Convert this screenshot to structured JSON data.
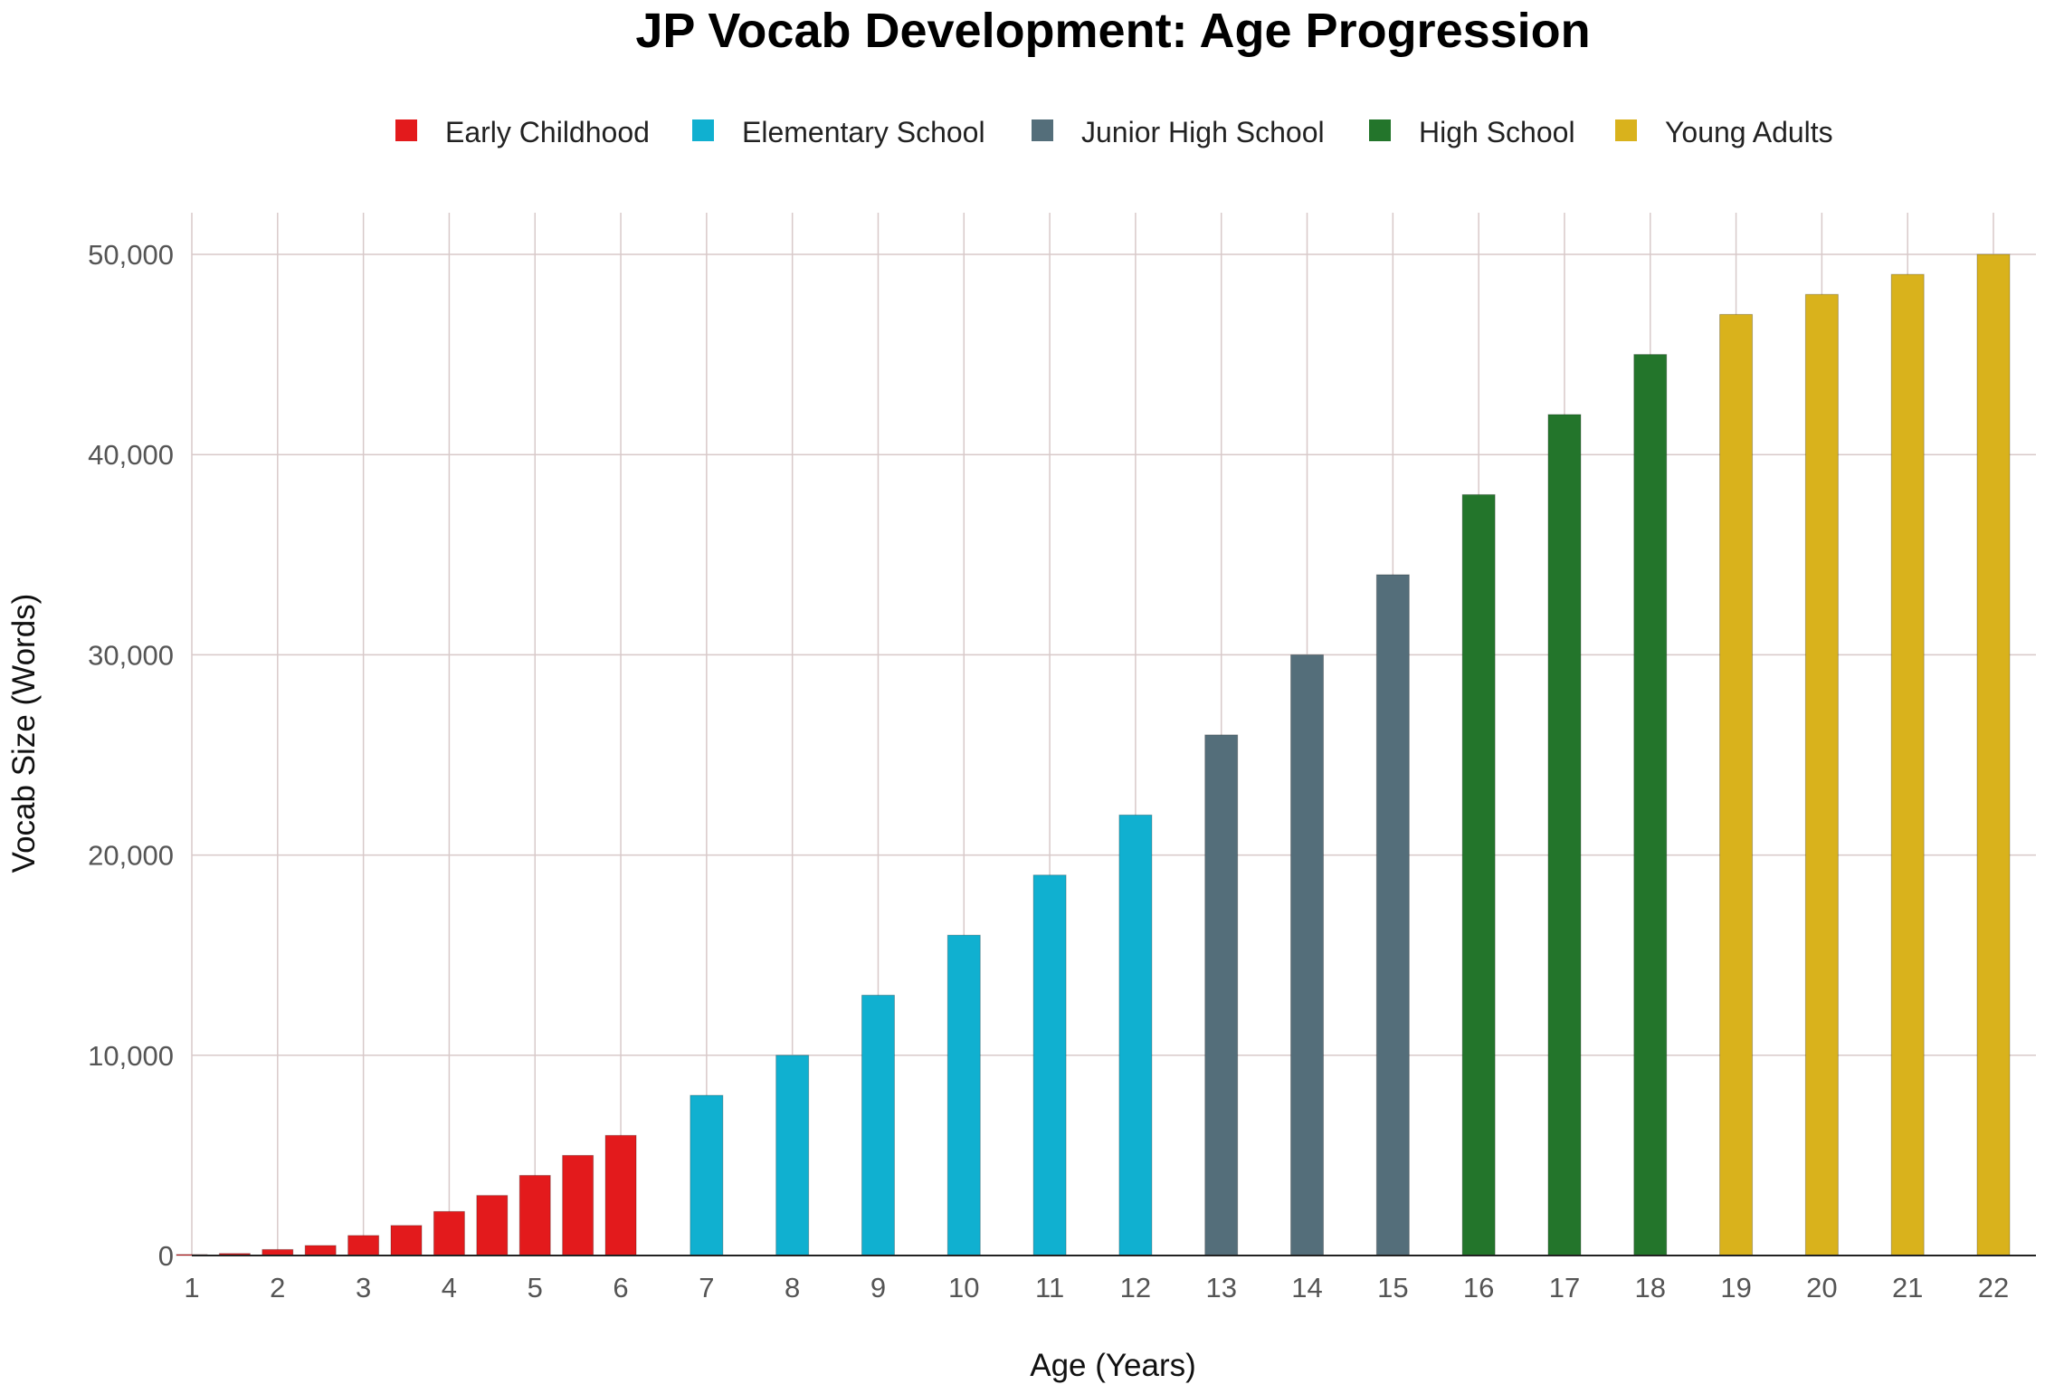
{
  "chart_data": {
    "type": "bar",
    "title": "JP Vocab Development: Age Progression",
    "xlabel": "Age (Years)",
    "ylabel": "Vocab Size (Words)",
    "ylim": [
      0,
      52000
    ],
    "xlim": [
      1,
      22.5
    ],
    "x_ticks": [
      "1",
      "2",
      "3",
      "4",
      "5",
      "6",
      "7",
      "8",
      "9",
      "10",
      "11",
      "12",
      "13",
      "14",
      "15",
      "16",
      "17",
      "18",
      "19",
      "20",
      "21",
      "22"
    ],
    "y_ticks": [
      {
        "value": 0,
        "label": "0"
      },
      {
        "value": 10000,
        "label": "10,000"
      },
      {
        "value": 20000,
        "label": "20,000"
      },
      {
        "value": 30000,
        "label": "30,000"
      },
      {
        "value": 40000,
        "label": "40,000"
      },
      {
        "value": 50000,
        "label": "50,000"
      }
    ],
    "grid": true,
    "legend_position": "top-center",
    "series": [
      {
        "name": "Early Childhood",
        "color": "#e31a1c",
        "x": [
          1,
          1.5,
          2,
          2.5,
          3,
          3.5,
          4,
          4.5,
          5,
          5.5,
          6
        ],
        "values": [
          50,
          100,
          300,
          500,
          1000,
          1500,
          2200,
          3000,
          4000,
          5000,
          6000
        ]
      },
      {
        "name": "Elementary School",
        "color": "#10b0d0",
        "x": [
          7,
          8,
          9,
          10,
          11,
          12
        ],
        "values": [
          8000,
          10000,
          13000,
          16000,
          19000,
          22000
        ]
      },
      {
        "name": "Junior High School",
        "color": "#546e7a",
        "x": [
          13,
          14,
          15
        ],
        "values": [
          26000,
          30000,
          34000
        ]
      },
      {
        "name": "High School",
        "color": "#23752b",
        "x": [
          16,
          17,
          18
        ],
        "values": [
          38000,
          42000,
          45000
        ]
      },
      {
        "name": "Young Adults",
        "color": "#d9b21c",
        "x": [
          19,
          20,
          21,
          22
        ],
        "values": [
          47000,
          48000,
          49000,
          50000
        ]
      }
    ]
  }
}
